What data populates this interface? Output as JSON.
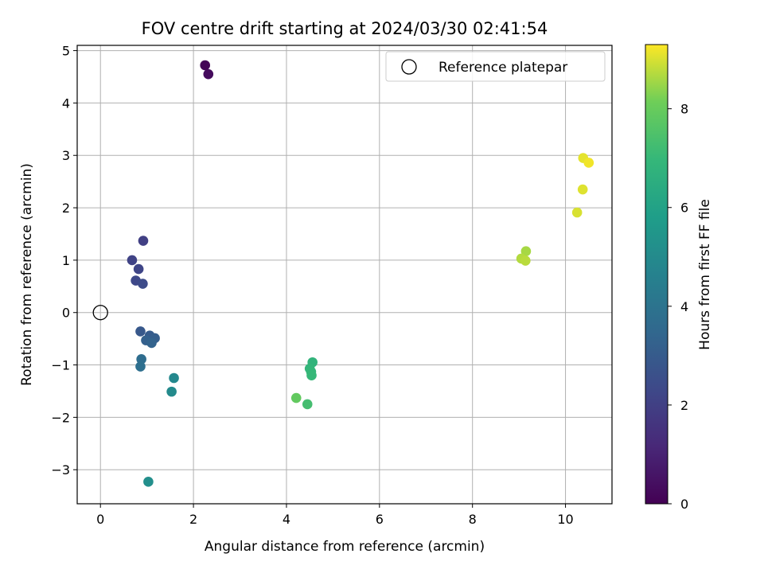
{
  "chart_data": {
    "type": "scatter",
    "title": "FOV centre drift starting at 2024/03/30 02:41:54",
    "xlabel": "Angular distance from reference (arcmin)",
    "ylabel": "Rotation from reference (arcmin)",
    "xlim": [
      -0.5,
      11.0
    ],
    "ylim": [
      -3.65,
      5.1
    ],
    "xticks": [
      0,
      2,
      4,
      6,
      8,
      10
    ],
    "yticks": [
      -3,
      -2,
      -1,
      0,
      1,
      2,
      3,
      4,
      5
    ],
    "grid": true,
    "legend": {
      "location": "upper-right",
      "entries": [
        "Reference platepar"
      ]
    },
    "reference": {
      "name": "Reference platepar",
      "x": 0,
      "y": 0,
      "marker": "open-circle"
    },
    "colorbar": {
      "label": "Hours from first FF file",
      "range": [
        0,
        9.3
      ],
      "ticks": [
        0,
        2,
        4,
        6,
        8
      ],
      "colormap": "viridis"
    },
    "points": [
      {
        "x": 2.25,
        "y": 4.72,
        "c": 0.1
      },
      {
        "x": 2.32,
        "y": 4.55,
        "c": 0.3
      },
      {
        "x": 0.92,
        "y": 1.37,
        "c": 2.0
      },
      {
        "x": 0.68,
        "y": 1.0,
        "c": 2.1
      },
      {
        "x": 0.82,
        "y": 0.83,
        "c": 2.2
      },
      {
        "x": 0.76,
        "y": 0.61,
        "c": 2.3
      },
      {
        "x": 0.91,
        "y": 0.55,
        "c": 2.4
      },
      {
        "x": 0.86,
        "y": -0.36,
        "c": 2.9
      },
      {
        "x": 1.06,
        "y": -0.44,
        "c": 3.0
      },
      {
        "x": 1.17,
        "y": -0.49,
        "c": 3.1
      },
      {
        "x": 0.98,
        "y": -0.53,
        "c": 3.2
      },
      {
        "x": 1.1,
        "y": -0.58,
        "c": 3.3
      },
      {
        "x": 0.88,
        "y": -0.89,
        "c": 3.7
      },
      {
        "x": 0.86,
        "y": -1.03,
        "c": 3.8
      },
      {
        "x": 1.58,
        "y": -1.25,
        "c": 4.9
      },
      {
        "x": 1.53,
        "y": -1.51,
        "c": 5.0
      },
      {
        "x": 1.03,
        "y": -3.23,
        "c": 5.2
      },
      {
        "x": 4.56,
        "y": -0.95,
        "c": 6.8
      },
      {
        "x": 4.5,
        "y": -1.07,
        "c": 6.9
      },
      {
        "x": 4.53,
        "y": -1.13,
        "c": 6.95
      },
      {
        "x": 4.54,
        "y": -1.2,
        "c": 7.0
      },
      {
        "x": 4.45,
        "y": -1.75,
        "c": 7.3
      },
      {
        "x": 4.21,
        "y": -1.63,
        "c": 7.9
      },
      {
        "x": 9.15,
        "y": 1.17,
        "c": 8.6
      },
      {
        "x": 9.05,
        "y": 1.03,
        "c": 8.7
      },
      {
        "x": 9.14,
        "y": 0.99,
        "c": 8.75
      },
      {
        "x": 10.25,
        "y": 1.91,
        "c": 9.0
      },
      {
        "x": 10.37,
        "y": 2.35,
        "c": 9.05
      },
      {
        "x": 10.38,
        "y": 2.95,
        "c": 9.1
      },
      {
        "x": 10.5,
        "y": 2.86,
        "c": 9.2
      }
    ]
  }
}
